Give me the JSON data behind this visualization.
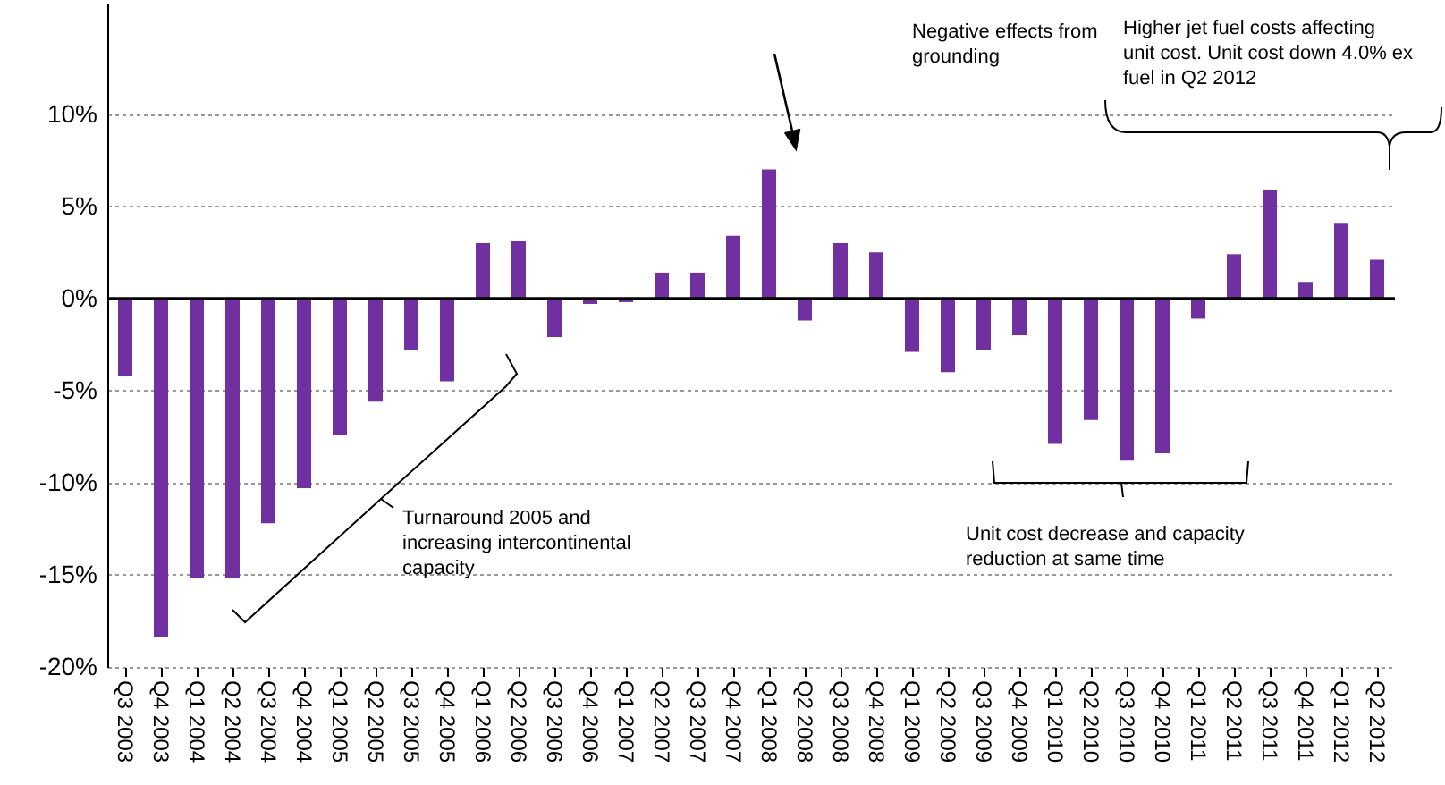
{
  "chart_data": {
    "type": "bar",
    "categories": [
      "Q3 2003",
      "Q4 2003",
      "Q1 2004",
      "Q2 2004",
      "Q3 2004",
      "Q4 2004",
      "Q1 2005",
      "Q2 2005",
      "Q3 2005",
      "Q4 2005",
      "Q1 2006",
      "Q2 2006",
      "Q3 2006",
      "Q4 2006",
      "Q1 2007",
      "Q2 2007",
      "Q3 2007",
      "Q4 2007",
      "Q1 2008",
      "Q2 2008",
      "Q3 2008",
      "Q4 2008",
      "Q1 2009",
      "Q2 2009",
      "Q3 2009",
      "Q4 2009",
      "Q1 2010",
      "Q2 2010",
      "Q3 2010",
      "Q4 2010",
      "Q1 2011",
      "Q2 2011",
      "Q3 2011",
      "Q4 2011",
      "Q1 2012",
      "Q2 2012"
    ],
    "values": [
      -4.2,
      -18.4,
      -15.2,
      -15.2,
      -12.2,
      -10.3,
      -7.4,
      -5.6,
      -2.8,
      -4.5,
      3.0,
      3.1,
      -2.1,
      -0.3,
      -0.2,
      1.4,
      1.4,
      3.4,
      7.0,
      -1.2,
      3.0,
      2.5,
      -2.9,
      -4.0,
      -2.8,
      -2.0,
      -7.9,
      -6.6,
      -8.8,
      -8.4,
      -1.1,
      2.4,
      5.9,
      0.9,
      4.1,
      2.1
    ],
    "color": "#7030a0",
    "ylim": [
      -20,
      16
    ],
    "yticks": [
      {
        "value": -20,
        "label": "-20%"
      },
      {
        "value": -15,
        "label": "-15%"
      },
      {
        "value": -10,
        "label": "-10%"
      },
      {
        "value": -5,
        "label": "-5%"
      },
      {
        "value": 0,
        "label": "0%"
      },
      {
        "value": 5,
        "label": "5%"
      },
      {
        "value": 10,
        "label": "10%"
      }
    ],
    "grid": "y",
    "annotations": [
      "Negative effects from grounding",
      "Higher jet fuel costs affecting unit cost. Unit cost down 4.0% ex fuel in Q2 2012",
      "Turnaround 2005 and increasing intercontinental capacity",
      "Unit cost decrease and capacity reduction at same time"
    ]
  }
}
